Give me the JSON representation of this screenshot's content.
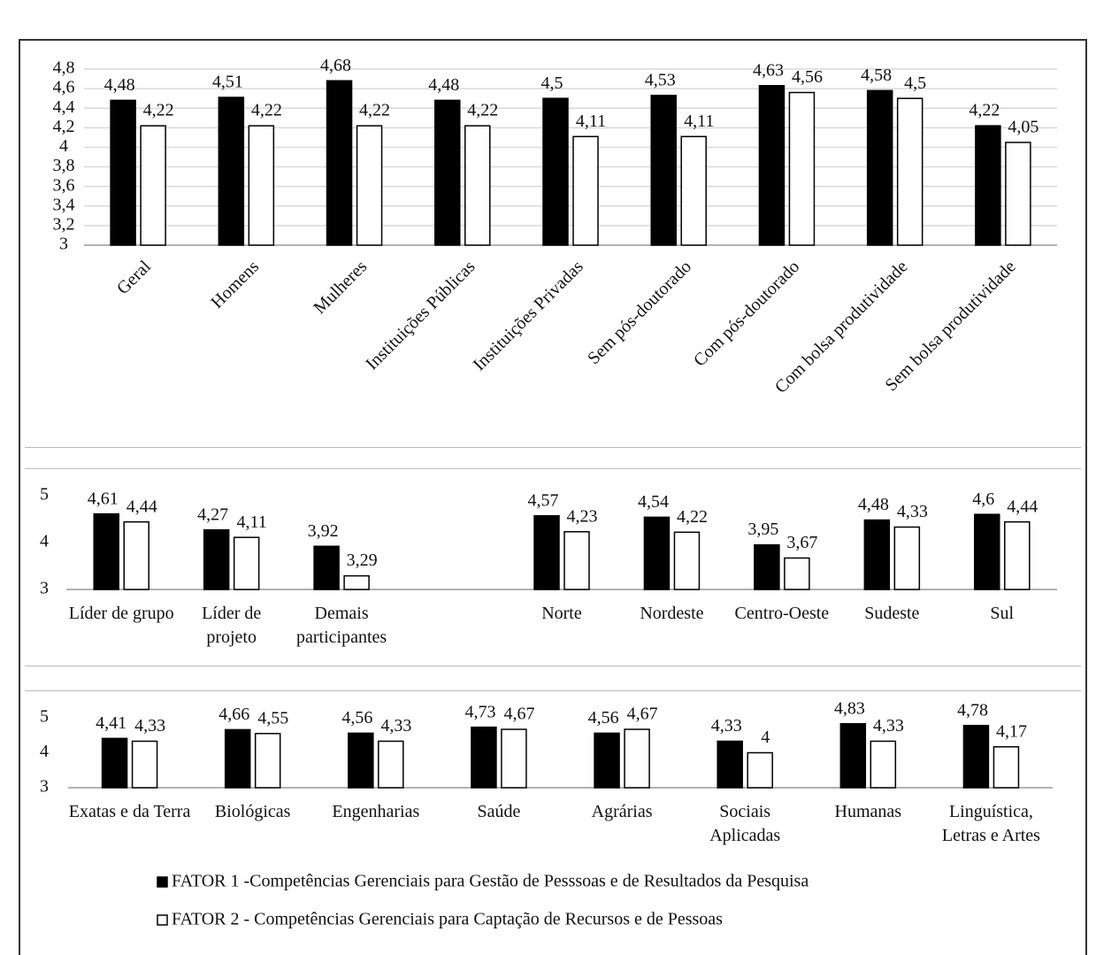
{
  "chart_data": [
    {
      "type": "bar",
      "categories": [
        "Geral",
        "Homens",
        "Mulheres",
        "Instituições Públicas",
        "Instituições Privadas",
        "Sem pós-doutorado",
        "Com pós-doutorado",
        "Com bolsa produtividade",
        "Sem bolsa produtividade"
      ],
      "series": [
        {
          "color": "#000000",
          "values": [
            4.48,
            4.51,
            4.68,
            4.48,
            4.5,
            4.53,
            4.63,
            4.58,
            4.22
          ],
          "value_labels": [
            "4,48",
            "4,51",
            "4,68",
            "4,48",
            "4,5",
            "4,53",
            "4,63",
            "4,58",
            "4,22"
          ]
        },
        {
          "color": "#ffffff",
          "values": [
            4.22,
            4.22,
            4.22,
            4.22,
            4.11,
            4.11,
            4.56,
            4.5,
            4.05
          ],
          "value_labels": [
            "4,22",
            "4,22",
            "4,22",
            "4,22",
            "4,11",
            "4,11",
            "4,56",
            "4,5",
            "4,05"
          ]
        }
      ],
      "ylim": [
        3,
        4.8
      ],
      "yticks": [
        3,
        {
          "value": 3.2,
          "label": "3,2"
        },
        {
          "value": 3.4,
          "label": "3,4"
        },
        {
          "value": 3.6,
          "label": "3,6"
        },
        {
          "value": 3.8,
          "label": "3,8"
        },
        4,
        {
          "value": 4.2,
          "label": "4,2"
        },
        {
          "value": 4.4,
          "label": "4,4"
        },
        {
          "value": 4.6,
          "label": "4,6"
        },
        {
          "value": 4.8,
          "label": "4,8"
        }
      ],
      "grid": true
    },
    {
      "type": "bar",
      "categories": [
        "Líder de grupo",
        "Líder de projeto",
        "Demais participantes",
        null,
        "Norte",
        "Nordeste",
        "Centro-Oeste",
        "Sudeste",
        "Sul"
      ],
      "series": [
        {
          "color": "#000000",
          "values": [
            4.61,
            4.27,
            3.92,
            null,
            4.57,
            4.54,
            3.95,
            4.48,
            4.6
          ],
          "value_labels": [
            "4,61",
            "4,27",
            "3,92",
            null,
            "4,57",
            "4,54",
            "3,95",
            "4,48",
            "4,6"
          ]
        },
        {
          "color": "#ffffff",
          "values": [
            4.44,
            4.11,
            3.29,
            null,
            4.23,
            4.22,
            3.67,
            4.33,
            4.44
          ],
          "value_labels": [
            "4,44",
            "4,11",
            "3,29",
            null,
            "4,23",
            "4,22",
            "3,67",
            "4,33",
            "4,44"
          ]
        }
      ],
      "ylim": [
        3,
        5
      ],
      "yticks": [
        3,
        4,
        5
      ],
      "grid": false
    },
    {
      "type": "bar",
      "categories": [
        "Exatas e da Terra",
        "Biológicas",
        "Engenharias",
        "Saúde",
        "Agrárias",
        "Sociais Aplicadas",
        "Humanas",
        "Linguística, Letras e Artes"
      ],
      "series": [
        {
          "name": "FATOR 1 -Competências Gerenciais para Gestão de Pesssoas e de Resultados da Pesquisa",
          "color": "#000000",
          "values": [
            4.41,
            4.66,
            4.56,
            4.73,
            4.56,
            4.33,
            4.83,
            4.78
          ],
          "value_labels": [
            "4,41",
            "4,66",
            "4,56",
            "4,73",
            "4,56",
            "4,33",
            "4,83",
            "4,78"
          ]
        },
        {
          "name": "FATOR 2 - Competências Gerenciais para Captação de Recursos e de Pessoas",
          "color": "#ffffff",
          "values": [
            4.33,
            4.55,
            4.33,
            4.67,
            4.67,
            4,
            4.33,
            4.17
          ],
          "value_labels": [
            "4,33",
            "4,55",
            "4,33",
            "4,67",
            "4,67",
            "4",
            "4,33",
            "4,17"
          ]
        }
      ],
      "ylim": [
        3,
        5
      ],
      "yticks": [
        3,
        4,
        5
      ],
      "grid": false
    }
  ]
}
